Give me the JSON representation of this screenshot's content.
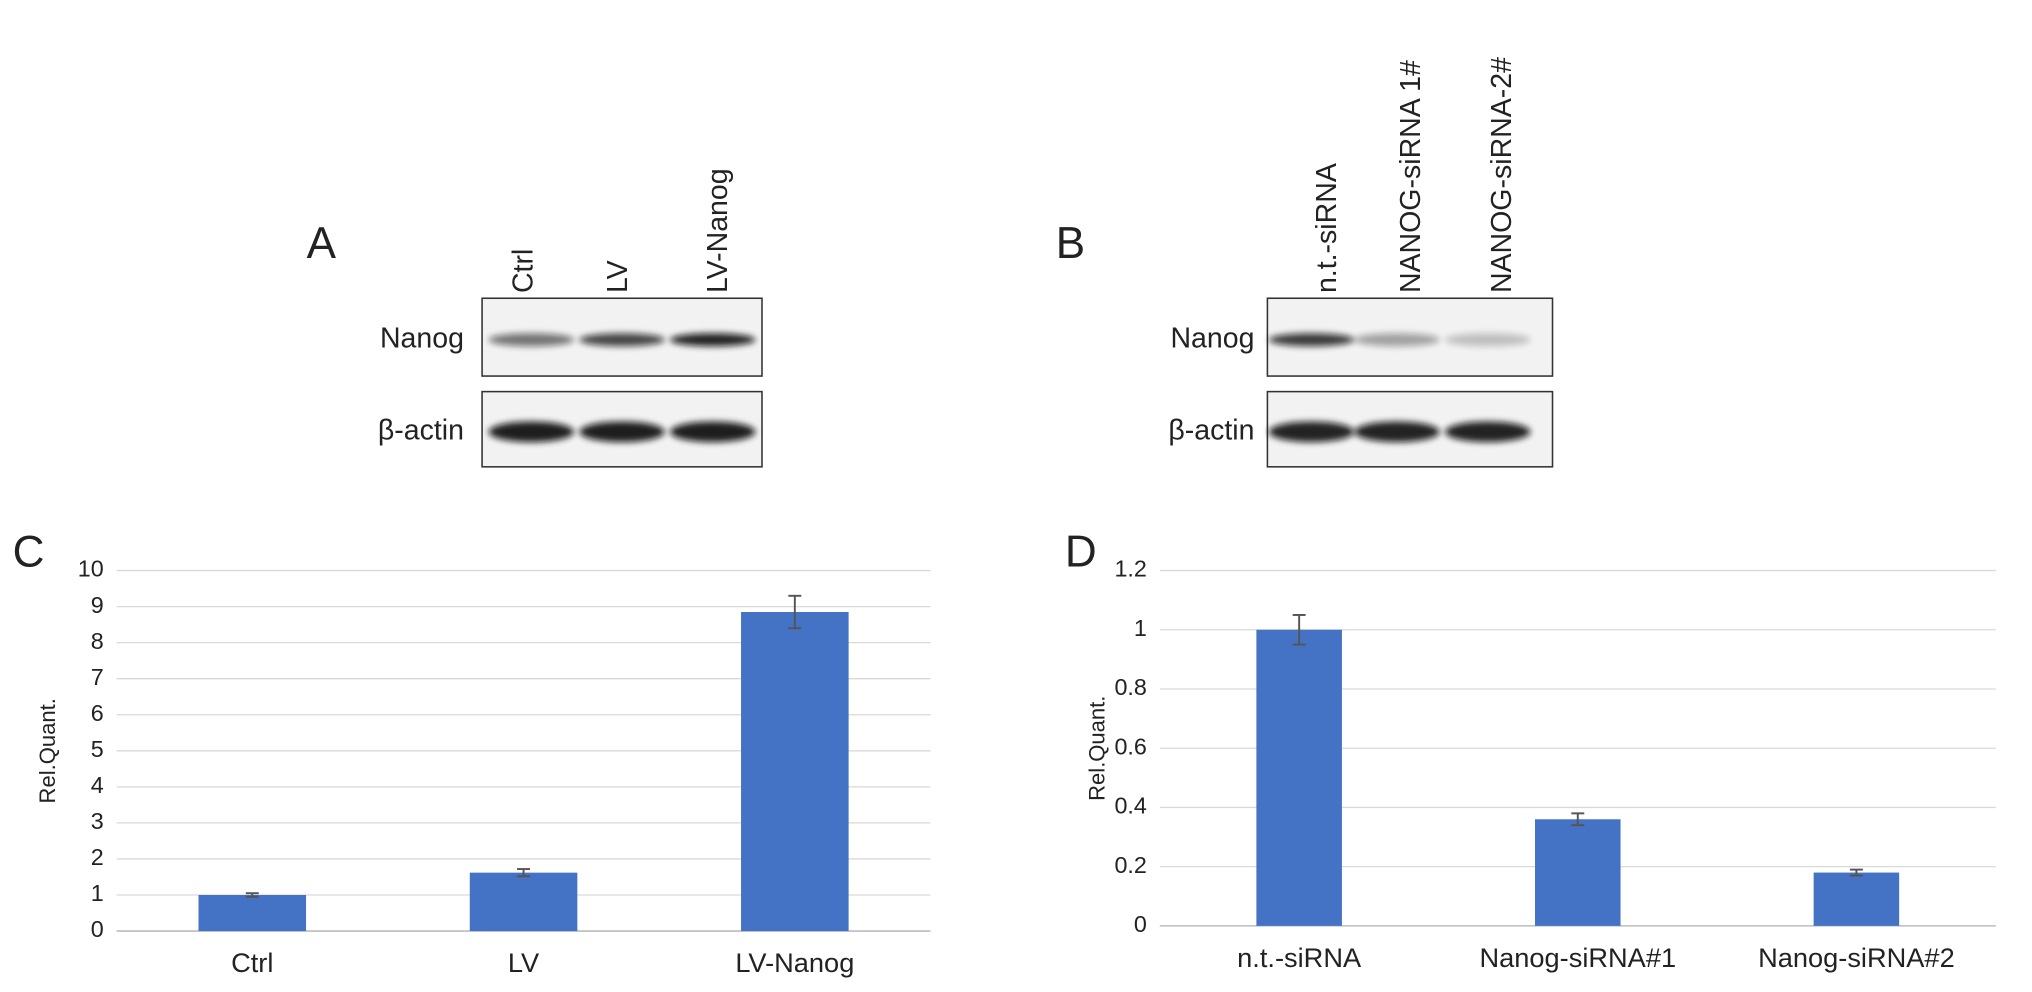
{
  "blots": [
    {
      "panel": "A",
      "lanes": [
        "Ctrl",
        "LV",
        "LV-Nanog"
      ],
      "rows": [
        "Nanog",
        "β-actin"
      ]
    },
    {
      "panel": "B",
      "lanes": [
        "n.t.-siRNA",
        "NANOG-siRNA 1#",
        "NANOG-siRNA-2#"
      ],
      "rows": [
        "Nanog",
        "β-actin"
      ]
    }
  ],
  "chart_data": [
    {
      "type": "bar",
      "panel": "C",
      "y_label": "Rel.Quant.",
      "categories": [
        "Ctrl",
        "LV",
        "LV-Nanog"
      ],
      "values": [
        1.0,
        1.62,
        8.85
      ],
      "errors": [
        0.05,
        0.1,
        0.45
      ],
      "color": "#4472c4",
      "ylim": [
        0,
        10
      ],
      "yticks": [
        0,
        1,
        2,
        3,
        4,
        5,
        6,
        7,
        8,
        9,
        10
      ],
      "grid": true
    },
    {
      "type": "bar",
      "panel": "D",
      "y_label": "Rel.Quant.",
      "categories": [
        "n.t.-siRNA",
        "Nanog-siRNA#1",
        "Nanog-siRNA#2"
      ],
      "values": [
        1.0,
        0.36,
        0.18
      ],
      "errors": [
        0.05,
        0.02,
        0.01
      ],
      "color": "#4472c4",
      "ylim": [
        0,
        1.2
      ],
      "yticks": [
        0,
        0.2,
        0.4,
        0.6,
        0.8,
        1,
        1.2
      ],
      "grid": true
    }
  ]
}
